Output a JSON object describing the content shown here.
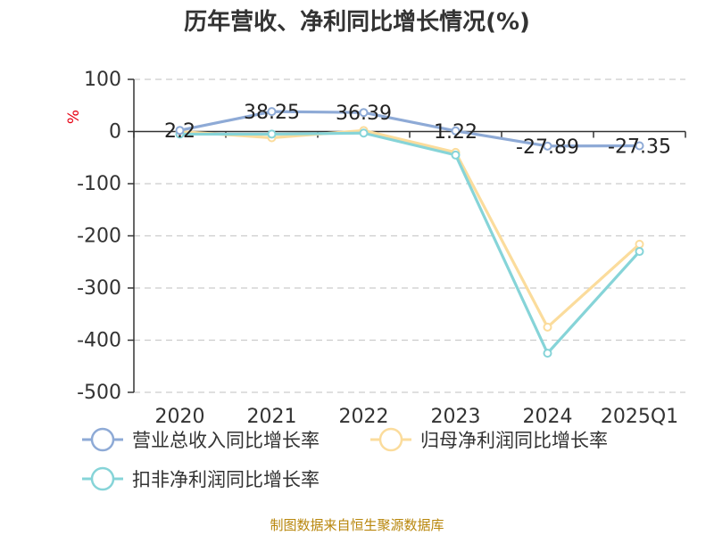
{
  "chart_data": {
    "type": "line",
    "title": "历年营收、净利同比增长情况(%)",
    "ylabel": "%",
    "xlabel": "",
    "categories": [
      "2020",
      "2021",
      "2022",
      "2023",
      "2024",
      "2025Q1"
    ],
    "ylim": [
      -500,
      100
    ],
    "yticks": [
      100,
      0,
      -100,
      -200,
      -300,
      -400,
      -500
    ],
    "grid": true,
    "legend": "bottom",
    "series": [
      {
        "name": "营业总收入同比增长率",
        "color": "#8eaad6",
        "values": [
          2.2,
          38.25,
          36.39,
          1.22,
          -27.89,
          -27.35
        ],
        "labels": [
          "2.2",
          "38.25",
          "36.39",
          "1.22",
          "-27.89",
          "-27.35"
        ]
      },
      {
        "name": "归母净利润同比增长率",
        "color": "#fbdc9c",
        "values": [
          0,
          -12,
          2,
          -40,
          -375,
          -216
        ]
      },
      {
        "name": "扣非净利润同比增长率",
        "color": "#86d4d8",
        "values": [
          -5,
          -5,
          -3,
          -45,
          -425,
          -230
        ]
      }
    ]
  },
  "source": "制图数据来自恒生聚源数据库"
}
